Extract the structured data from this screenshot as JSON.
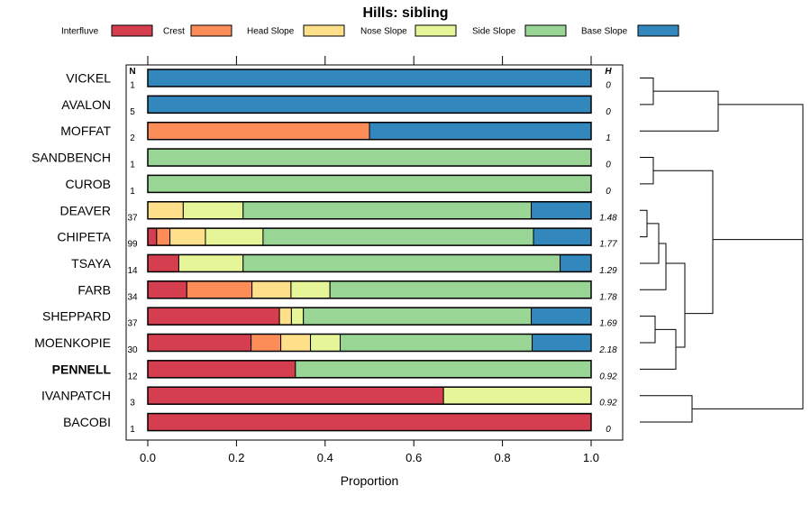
{
  "chart_data": {
    "type": "stacked-bar",
    "title": "Hills: sibling",
    "xlabel": "Proportion",
    "xlim": [
      0,
      1
    ],
    "xticks": [
      "0.0",
      "0.2",
      "0.4",
      "0.6",
      "0.8",
      "1.0"
    ],
    "xtick_values": [
      0,
      0.2,
      0.4,
      0.6,
      0.8,
      1.0
    ],
    "n_header": "N",
    "h_header": "H",
    "legend": [
      {
        "name": "Interfluve",
        "color": "#d53e4f"
      },
      {
        "name": "Crest",
        "color": "#fc8d59"
      },
      {
        "name": "Head Slope",
        "color": "#fee08b"
      },
      {
        "name": "Nose Slope",
        "color": "#e6f598"
      },
      {
        "name": "Side Slope",
        "color": "#99d594"
      },
      {
        "name": "Base Slope",
        "color": "#3288bd"
      }
    ],
    "rows": [
      {
        "name": "VICKEL",
        "n": "1",
        "h": "0",
        "bold": false,
        "values": [
          0,
          0,
          0,
          0,
          0,
          1.0
        ]
      },
      {
        "name": "AVALON",
        "n": "5",
        "h": "0",
        "bold": false,
        "values": [
          0,
          0,
          0,
          0,
          0,
          1.0
        ]
      },
      {
        "name": "MOFFAT",
        "n": "2",
        "h": "1",
        "bold": false,
        "values": [
          0,
          0.5,
          0,
          0,
          0,
          0.5
        ]
      },
      {
        "name": "SANDBENCH",
        "n": "1",
        "h": "0",
        "bold": false,
        "values": [
          0,
          0,
          0,
          0,
          1.0,
          0
        ]
      },
      {
        "name": "CUROB",
        "n": "1",
        "h": "0",
        "bold": false,
        "values": [
          0,
          0,
          0,
          0,
          1.0,
          0
        ]
      },
      {
        "name": "DEAVER",
        "n": "37",
        "h": "1.48",
        "bold": false,
        "values": [
          0,
          0,
          0.08,
          0.135,
          0.65,
          0.135
        ]
      },
      {
        "name": "CHIPETA",
        "n": "99",
        "h": "1.77",
        "bold": false,
        "values": [
          0.02,
          0.03,
          0.08,
          0.13,
          0.61,
          0.13
        ]
      },
      {
        "name": "TSAYA",
        "n": "14",
        "h": "1.29",
        "bold": false,
        "values": [
          0.07,
          0,
          0,
          0.145,
          0.715,
          0.07
        ]
      },
      {
        "name": "FARB",
        "n": "34",
        "h": "1.78",
        "bold": false,
        "values": [
          0.088,
          0.147,
          0.088,
          0.088,
          0.589,
          0
        ]
      },
      {
        "name": "SHEPPARD",
        "n": "37",
        "h": "1.69",
        "bold": false,
        "values": [
          0.297,
          0,
          0.027,
          0.027,
          0.514,
          0.135
        ]
      },
      {
        "name": "MOENKOPIE",
        "n": "30",
        "h": "2.18",
        "bold": false,
        "values": [
          0.233,
          0.067,
          0.067,
          0.067,
          0.433,
          0.133
        ]
      },
      {
        "name": "PENNELL",
        "n": "12",
        "h": "0.92",
        "bold": true,
        "values": [
          0.333,
          0,
          0,
          0,
          0.667,
          0
        ]
      },
      {
        "name": "IVANPATCH",
        "n": "3",
        "h": "0.92",
        "bold": false,
        "values": [
          0.667,
          0,
          0,
          0.333,
          0,
          0
        ]
      },
      {
        "name": "BACOBI",
        "n": "1",
        "h": "0",
        "bold": false,
        "values": [
          1.0,
          0,
          0,
          0,
          0,
          0
        ]
      }
    ]
  }
}
